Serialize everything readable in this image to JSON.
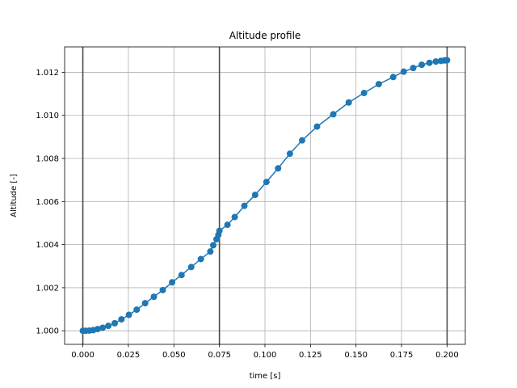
{
  "chart_data": {
    "type": "line",
    "title": "Altitude profile",
    "xlabel": "time [s]",
    "ylabel": "Altitude [-]",
    "xlim": [
      -0.01,
      0.21
    ],
    "ylim": [
      0.99937,
      1.01318
    ],
    "grid": true,
    "x_ticks": [
      0.0,
      0.025,
      0.05,
      0.075,
      0.1,
      0.125,
      0.15,
      0.175,
      0.2
    ],
    "x_tick_labels": [
      "0.000",
      "0.025",
      "0.050",
      "0.075",
      "0.100",
      "0.125",
      "0.150",
      "0.175",
      "0.200"
    ],
    "y_ticks": [
      1.0,
      1.002,
      1.004,
      1.006,
      1.008,
      1.01,
      1.012
    ],
    "y_tick_labels": [
      "1.000",
      "1.002",
      "1.004",
      "1.006",
      "1.008",
      "1.010",
      "1.012"
    ],
    "vertical_lines": [
      0.0,
      0.075,
      0.2
    ],
    "colors": {
      "series": "#1f77b4",
      "vline": "#333333",
      "grid": "#b0b0b0"
    },
    "series": [
      {
        "x": [
          0.0,
          0.0016,
          0.0036,
          0.0057,
          0.0081,
          0.0109,
          0.014,
          0.0175,
          0.0212,
          0.0253,
          0.0296,
          0.0342,
          0.039,
          0.0439,
          0.049,
          0.0542,
          0.0595,
          0.0648,
          0.07,
          0.0716,
          0.0734,
          0.0744,
          0.075,
          0.0794,
          0.0834,
          0.0887,
          0.0946,
          0.1008,
          0.1072,
          0.1137,
          0.1204,
          0.1286,
          0.1375,
          0.146,
          0.1544,
          0.1625,
          0.1704,
          0.1762,
          0.1814,
          0.1861,
          0.1903,
          0.1938,
          0.1966,
          0.1985,
          0.1997,
          0.2
        ],
        "y": [
          1.0,
          1.0,
          1.00001,
          1.00003,
          1.00008,
          1.00014,
          1.00023,
          1.00035,
          1.00053,
          1.00074,
          1.00098,
          1.00128,
          1.00158,
          1.00189,
          1.00225,
          1.00259,
          1.00296,
          1.00333,
          1.00368,
          1.00397,
          1.00425,
          1.00445,
          1.00464,
          1.00492,
          1.00528,
          1.0058,
          1.00631,
          1.00691,
          1.00754,
          1.00822,
          1.00884,
          1.00948,
          1.01005,
          1.0106,
          1.01104,
          1.01145,
          1.01178,
          1.01203,
          1.0122,
          1.01235,
          1.01244,
          1.0125,
          1.01253,
          1.01255,
          1.01256,
          1.01256
        ]
      }
    ]
  }
}
